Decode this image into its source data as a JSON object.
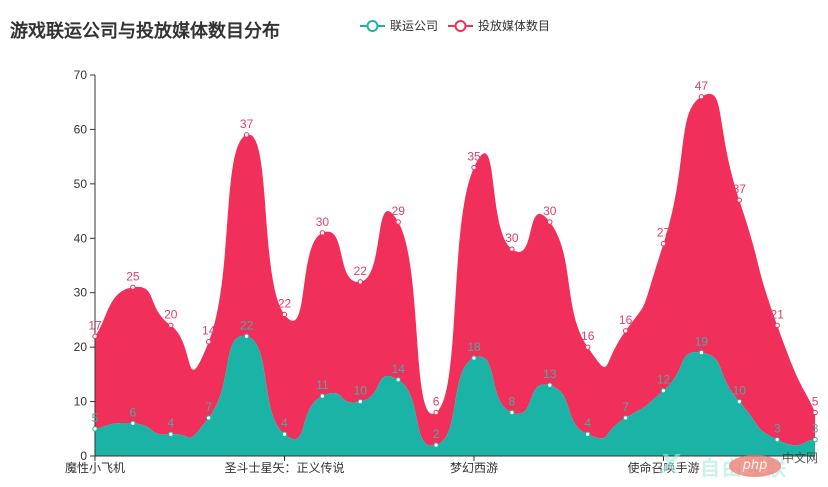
{
  "title": "游戏联运公司与投放媒体数目分布",
  "legend": [
    {
      "label": "联运公司",
      "color": "#1ab3a5"
    },
    {
      "label": "投放媒体数目",
      "color": "#f0305a"
    }
  ],
  "watermark": {
    "brand": "自由互联",
    "php": "php",
    "site": "中文网",
    "x_mark": "X"
  },
  "chart_data": {
    "type": "area",
    "stacked": true,
    "smooth": true,
    "title": "游戏联运公司与投放媒体数目分布",
    "xlabel": "",
    "ylabel": "",
    "ylim": [
      0,
      70
    ],
    "yticks": [
      0,
      10,
      20,
      30,
      40,
      50,
      60,
      70
    ],
    "grid": false,
    "legend_position": "top",
    "visible_x_labels": [
      {
        "index": 0,
        "label": "魔性小飞机"
      },
      {
        "index": 5,
        "label": "圣斗士星矢：正义传说"
      },
      {
        "index": 10,
        "label": "梦幻西游"
      },
      {
        "index": 15,
        "label": "使命召唤手游"
      }
    ],
    "category_count": 20,
    "series": [
      {
        "name": "联运公司",
        "color": "#1ab3a5",
        "values": [
          5,
          6,
          4,
          7,
          22,
          4,
          11,
          10,
          14,
          2,
          18,
          8,
          13,
          4,
          7,
          12,
          19,
          10,
          3,
          3
        ]
      },
      {
        "name": "投放媒体数目",
        "color": "#f0305a",
        "values": [
          17,
          25,
          20,
          14,
          37,
          22,
          30,
          22,
          29,
          6,
          35,
          30,
          30,
          16,
          16,
          27,
          47,
          37,
          21,
          5
        ]
      }
    ]
  }
}
